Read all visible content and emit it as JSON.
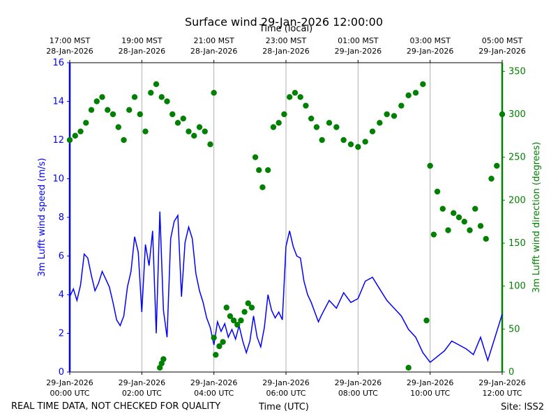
{
  "chart_data": {
    "type": "line",
    "title": "Surface wind 29-Jan-2026 12:00:00",
    "xlabel": "Time (UTC)",
    "xlabel_top": "Time (local)",
    "ylabel_left": "3m Lufft wind speed (m/s)",
    "ylabel_right": "3m Lufft wind direction (degrees)",
    "left_color": "#0000ff",
    "right_color": "#008000",
    "x_range_hours": [
      0,
      12
    ],
    "ylim_left": [
      0,
      16
    ],
    "ylim_right": [
      0,
      360
    ],
    "left_ticks": [
      0,
      2,
      4,
      6,
      8,
      10,
      12,
      14,
      16
    ],
    "right_ticks": [
      0,
      50,
      100,
      150,
      200,
      250,
      300,
      350
    ],
    "bottom_ticks": [
      {
        "hour": 0,
        "line1": "29-Jan-2026",
        "line2": "00:00 UTC"
      },
      {
        "hour": 2,
        "line1": "29-Jan-2026",
        "line2": "02:00 UTC"
      },
      {
        "hour": 4,
        "line1": "29-Jan-2026",
        "line2": "04:00 UTC"
      },
      {
        "hour": 6,
        "line1": "29-Jan-2026",
        "line2": "06:00 UTC"
      },
      {
        "hour": 8,
        "line1": "29-Jan-2026",
        "line2": "08:00 UTC"
      },
      {
        "hour": 10,
        "line1": "29-Jan-2026",
        "line2": "10:00 UTC"
      },
      {
        "hour": 12,
        "line1": "29-Jan-2026",
        "line2": "12:00 UTC"
      }
    ],
    "top_ticks": [
      {
        "hour": 0,
        "line1": "17:00 MST",
        "line2": "28-Jan-2026"
      },
      {
        "hour": 2,
        "line1": "19:00 MST",
        "line2": "28-Jan-2026"
      },
      {
        "hour": 4,
        "line1": "21:00 MST",
        "line2": "28-Jan-2026"
      },
      {
        "hour": 6,
        "line1": "23:00 MST",
        "line2": "28-Jan-2026"
      },
      {
        "hour": 8,
        "line1": "01:00 MST",
        "line2": "29-Jan-2026"
      },
      {
        "hour": 10,
        "line1": "03:00 MST",
        "line2": "29-Jan-2026"
      },
      {
        "hour": 12,
        "line1": "05:00 MST",
        "line2": "29-Jan-2026"
      }
    ],
    "series": [
      {
        "name": "3m Lufft wind speed",
        "axis": "left",
        "style": "line",
        "x": [
          0,
          0.1,
          0.2,
          0.3,
          0.4,
          0.5,
          0.6,
          0.7,
          0.8,
          0.9,
          1.0,
          1.1,
          1.2,
          1.3,
          1.4,
          1.5,
          1.6,
          1.7,
          1.8,
          1.9,
          2.0,
          2.1,
          2.2,
          2.3,
          2.4,
          2.5,
          2.6,
          2.7,
          2.8,
          2.9,
          3.0,
          3.1,
          3.2,
          3.3,
          3.4,
          3.5,
          3.6,
          3.7,
          3.8,
          3.9,
          4.0,
          4.1,
          4.2,
          4.3,
          4.4,
          4.5,
          4.6,
          4.7,
          4.8,
          4.9,
          5.0,
          5.1,
          5.2,
          5.3,
          5.4,
          5.5,
          5.6,
          5.7,
          5.8,
          5.9,
          6.0,
          6.1,
          6.2,
          6.3,
          6.4,
          6.5,
          6.6,
          6.7,
          6.8,
          6.9,
          7.0,
          7.2,
          7.4,
          7.6,
          7.8,
          8.0,
          8.2,
          8.4,
          8.6,
          8.8,
          9.0,
          9.2,
          9.4,
          9.6,
          9.8,
          10.0,
          10.2,
          10.4,
          10.6,
          10.8,
          11.0,
          11.2,
          11.4,
          11.6,
          11.8,
          12.0
        ],
        "values": [
          3.9,
          4.3,
          3.7,
          4.5,
          6.1,
          5.9,
          5.0,
          4.2,
          4.6,
          5.2,
          4.8,
          4.4,
          3.6,
          2.7,
          2.4,
          2.9,
          4.4,
          5.2,
          7.0,
          6.2,
          3.1,
          6.6,
          5.5,
          7.3,
          2.0,
          8.3,
          3.2,
          1.8,
          6.9,
          7.8,
          8.1,
          3.9,
          6.7,
          7.5,
          6.9,
          5.1,
          4.2,
          3.6,
          2.8,
          2.3,
          1.4,
          2.6,
          2.1,
          2.5,
          1.8,
          2.2,
          1.7,
          2.4,
          1.6,
          1.0,
          1.6,
          2.9,
          1.8,
          1.3,
          2.3,
          4.0,
          3.2,
          2.8,
          3.1,
          2.7,
          6.5,
          7.3,
          6.5,
          6.0,
          5.9,
          4.7,
          4.0,
          3.6,
          3.1,
          2.6,
          3.0,
          3.7,
          3.3,
          4.1,
          3.6,
          3.8,
          4.7,
          4.9,
          4.3,
          3.7,
          3.3,
          2.9,
          2.2,
          1.8,
          1.0,
          0.5,
          0.8,
          1.1,
          1.6,
          1.4,
          1.2,
          0.9,
          1.8,
          0.6,
          1.8,
          3.0
        ]
      },
      {
        "name": "3m Lufft wind direction",
        "axis": "right",
        "style": "scatter",
        "x": [
          0,
          0.15,
          0.3,
          0.45,
          0.6,
          0.75,
          0.9,
          1.05,
          1.2,
          1.35,
          1.5,
          1.65,
          1.8,
          1.95,
          2.1,
          2.25,
          2.4,
          2.55,
          2.7,
          2.85,
          3.0,
          3.15,
          3.3,
          3.45,
          3.6,
          3.75,
          3.9,
          4.0,
          4.05,
          4.15,
          4.25,
          4.35,
          4.45,
          4.55,
          4.65,
          4.75,
          4.85,
          4.95,
          5.05,
          5.15,
          5.25,
          5.35,
          5.5,
          5.65,
          5.8,
          5.95,
          6.1,
          6.25,
          6.4,
          6.55,
          6.7,
          6.85,
          7.0,
          7.2,
          7.4,
          7.6,
          7.8,
          8.0,
          8.2,
          8.4,
          8.6,
          8.8,
          9.0,
          9.2,
          9.4,
          9.6,
          9.8,
          9.9,
          10.0,
          10.1,
          10.2,
          10.35,
          10.5,
          10.65,
          10.8,
          10.95,
          11.1,
          11.25,
          11.4,
          11.55,
          11.7,
          11.85,
          12.0,
          2.5,
          2.55,
          2.6,
          4.0,
          9.4
        ],
        "values": [
          270,
          275,
          280,
          290,
          305,
          315,
          320,
          305,
          300,
          285,
          270,
          305,
          320,
          300,
          280,
          325,
          335,
          320,
          315,
          300,
          290,
          295,
          280,
          275,
          285,
          280,
          265,
          325,
          20,
          30,
          35,
          75,
          65,
          60,
          55,
          60,
          70,
          80,
          75,
          250,
          235,
          215,
          235,
          285,
          290,
          300,
          320,
          325,
          320,
          310,
          295,
          285,
          270,
          290,
          285,
          270,
          265,
          262,
          268,
          280,
          290,
          300,
          298,
          310,
          322,
          325,
          335,
          60,
          240,
          160,
          210,
          190,
          165,
          185,
          180,
          175,
          165,
          190,
          170,
          155,
          225,
          240,
          300,
          5,
          10,
          15,
          40,
          5
        ]
      }
    ]
  },
  "footer": {
    "note": "REAL TIME DATA, NOT CHECKED FOR QUALITY",
    "site": "Site: ISS2"
  }
}
